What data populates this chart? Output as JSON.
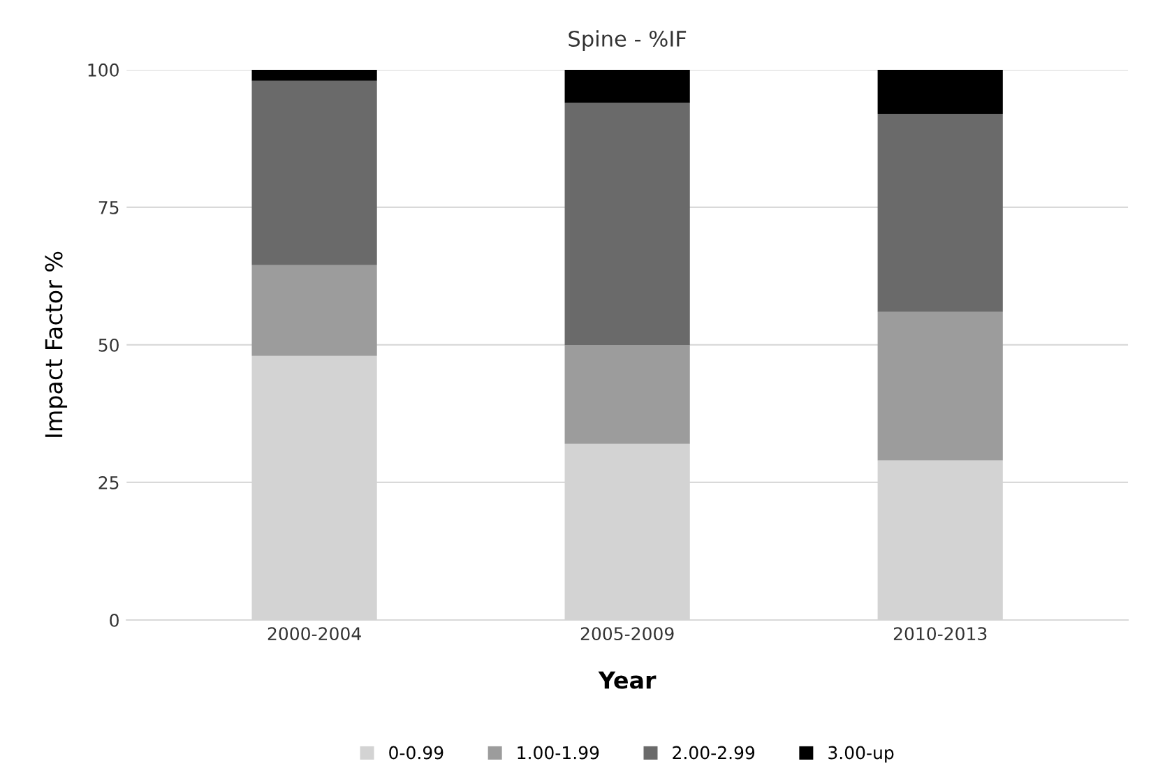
{
  "chart_data": {
    "type": "bar",
    "title": "Spine - %IF",
    "xlabel": "Year",
    "ylabel": "Impact Factor %",
    "categories": [
      "2000-2004",
      "2005-2009",
      "2010-2013"
    ],
    "stacked": true,
    "series": [
      {
        "name": "0-0.99",
        "color": "#d3d3d3",
        "values": [
          48,
          32,
          29
        ]
      },
      {
        "name": "1.00-1.99",
        "color": "#9c9c9c",
        "values": [
          16.5,
          18,
          27
        ]
      },
      {
        "name": "2.00-2.99",
        "color": "#6a6a6a",
        "values": [
          33.5,
          44,
          36
        ]
      },
      {
        "name": "3.00-up",
        "color": "#000000",
        "values": [
          2,
          6,
          8
        ]
      }
    ],
    "ylim": [
      0,
      100
    ],
    "yticks": [
      0,
      25,
      50,
      75,
      100
    ],
    "grid": "y",
    "legend": "bottom"
  }
}
